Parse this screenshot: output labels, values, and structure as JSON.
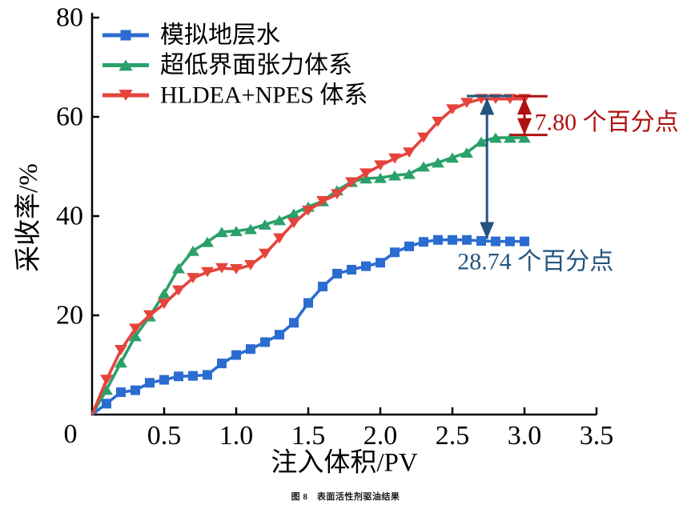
{
  "figure": {
    "caption": "图 8　表面活性剂驱油结果"
  },
  "chart_data": {
    "type": "line",
    "title": "",
    "xlabel": "注入体积/PV",
    "ylabel": "采收率/%",
    "xlim": [
      0,
      3.5
    ],
    "ylim": [
      0,
      80
    ],
    "grid": false,
    "legend_position": "top-left",
    "origin_label": "0",
    "xticks": [
      0.5,
      1.0,
      1.5,
      2.0,
      2.5,
      3.0,
      3.5
    ],
    "xtick_labels": [
      "0.5",
      "1.0",
      "1.5",
      "2.0",
      "2.5",
      "3.0",
      "3.5"
    ],
    "yticks": [
      20,
      40,
      60,
      80
    ],
    "ytick_labels": [
      "20",
      "40",
      "60",
      "80"
    ],
    "axis_color": "#000000",
    "x": [
      0,
      0.1,
      0.2,
      0.3,
      0.4,
      0.5,
      0.6,
      0.7,
      0.8,
      0.9,
      1.0,
      1.1,
      1.2,
      1.3,
      1.4,
      1.5,
      1.6,
      1.7,
      1.8,
      1.9,
      2.0,
      2.1,
      2.2,
      2.3,
      2.4,
      2.5,
      2.6,
      2.7,
      2.8,
      2.9,
      3.0
    ],
    "series": [
      {
        "id": "simulated-formation-water",
        "name": "模拟地层水",
        "color": "#2b6cd0",
        "marker": "square",
        "values": [
          0,
          2.2,
          4.5,
          4.9,
          6.4,
          7.0,
          7.7,
          7.8,
          8.0,
          10.3,
          12.0,
          13.2,
          14.6,
          16.1,
          18.5,
          22.5,
          25.8,
          28.4,
          29.2,
          29.9,
          30.6,
          32.7,
          33.9,
          34.8,
          35.2,
          35.2,
          35.2,
          35.0,
          34.9,
          34.9,
          34.9
        ]
      },
      {
        "id": "ultra-low-ift-system",
        "name": "超低界面张力体系",
        "color": "#2aa06a",
        "marker": "triangle-up",
        "values": [
          0,
          5.0,
          10.5,
          15.8,
          19.8,
          24.4,
          29.5,
          33.0,
          34.8,
          36.8,
          37.0,
          37.4,
          38.3,
          39.2,
          40.5,
          41.9,
          43.0,
          45.2,
          46.9,
          47.6,
          47.7,
          48.2,
          48.5,
          50.0,
          50.8,
          51.8,
          52.8,
          55.0,
          55.8,
          55.8,
          55.8
        ]
      },
      {
        "id": "hldea-npes-system",
        "name": "HLDEA+NPES 体系",
        "color": "#e6433c",
        "marker": "triangle-down",
        "values": [
          0,
          7.0,
          13.0,
          17.3,
          20.0,
          22.3,
          25.0,
          27.5,
          28.7,
          29.5,
          29.3,
          30.1,
          32.4,
          35.5,
          38.6,
          41.1,
          43.0,
          44.4,
          46.8,
          48.6,
          50.2,
          51.6,
          52.8,
          55.8,
          59.0,
          61.5,
          62.8,
          63.6,
          63.6,
          63.6,
          63.6
        ]
      }
    ],
    "annotations": [
      {
        "id": "gap-hldea-vs-ultralow",
        "text": "7.80 个百分点",
        "color": "#b01111",
        "x_pv": 3.0,
        "value_top": 63.85,
        "value_bottom": 56.35,
        "caps": [
          {
            "pv1": 2.93,
            "pv2": 3.16,
            "value": 64.15
          },
          {
            "pv1": 2.9,
            "pv2": 3.16,
            "value": 56.35
          }
        ],
        "text_pv": 3.07,
        "text_value": 58.9
      },
      {
        "id": "gap-hldea-vs-water",
        "text": "28.74 个百分点",
        "color": "#235580",
        "x_pv": 2.74,
        "value_top": 63.8,
        "value_bottom": 35.4,
        "caps": [
          {
            "pv1": 2.6,
            "pv2": 2.91,
            "value": 64.2
          }
        ],
        "text_pv": 2.535,
        "text_value": 30.8
      }
    ]
  }
}
